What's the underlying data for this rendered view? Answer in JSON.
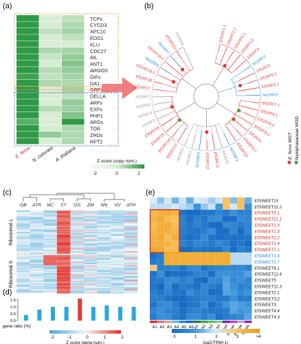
{
  "panel_labels": [
    "(a)",
    "(b)",
    "(c)",
    "(d)",
    "(e)"
  ],
  "panel_a": {
    "genes": [
      "TCPs",
      "CYCD3",
      "APC10",
      "EOD1",
      "KLU",
      "CDC27",
      "AIL",
      "ANT1",
      "ARGOS",
      "GIFs",
      "DA1",
      "GRFs",
      "DELLA",
      "ARFs",
      "EXPs",
      "PHP1",
      "ARGs",
      "TOR",
      "ZHDs",
      "RPT2"
    ],
    "species": [
      "E. ferox",
      "N. colorata",
      "A. thaliana"
    ],
    "values": [
      [
        2,
        0,
        0.3
      ],
      [
        2,
        0,
        0.5
      ],
      [
        2,
        0.3,
        0.6
      ],
      [
        2,
        0,
        0.3
      ],
      [
        2,
        0,
        0
      ],
      [
        2,
        0.5,
        0.6
      ],
      [
        2,
        0.2,
        0.8
      ],
      [
        2,
        0,
        1.0
      ],
      [
        2,
        0.4,
        0.8
      ],
      [
        1.8,
        0.3,
        0.6
      ],
      [
        2,
        0.5,
        0.5
      ],
      [
        2,
        0,
        0.6
      ],
      [
        2,
        0,
        0.3
      ],
      [
        2,
        0,
        0.8
      ],
      [
        2,
        0.4,
        0.7
      ],
      [
        2,
        0,
        1.0
      ],
      [
        1.5,
        0,
        2
      ],
      [
        2,
        0,
        0.5
      ],
      [
        2,
        0.8,
        0.5
      ],
      [
        2,
        0,
        0.5
      ]
    ],
    "highlight_gene": "GRFs",
    "scale_title": "Z score (copy num.)",
    "scale_ticks": [
      "-2",
      "0",
      "2"
    ]
  },
  "panel_b": {
    "labels": [
      {
        "t": "EfGRF1.1",
        "c": "red"
      },
      {
        "t": "EfGRF2.2",
        "c": "red"
      },
      {
        "t": "EfGRF3.1",
        "c": "red"
      },
      {
        "t": "EfGRF3.2",
        "c": "red"
      },
      {
        "t": "EfGRF4",
        "c": "red"
      },
      {
        "t": "NcGRF1",
        "c": "blue"
      },
      {
        "t": "EfGRF5",
        "c": "red"
      },
      {
        "t": "EfGRF6.2",
        "c": "red"
      },
      {
        "t": "EfGRF6.1",
        "c": "red"
      },
      {
        "t": "NcGRF2",
        "c": "blue"
      },
      {
        "t": "EfGRF7.1",
        "c": "red"
      },
      {
        "t": "EfGRF8.1",
        "c": "red"
      },
      {
        "t": "EfGRF8.2",
        "c": "red"
      },
      {
        "t": "EfGRF8.3",
        "c": "red"
      },
      {
        "t": "EfGRF9",
        "c": "red"
      },
      {
        "t": "EfGRF9.2",
        "c": "red"
      },
      {
        "t": "EfGRF10",
        "c": "red"
      },
      {
        "t": "NcGRF3",
        "c": "blue"
      },
      {
        "t": "AtGRF5",
        "c": "gray"
      },
      {
        "t": "EfGRF11",
        "c": "red"
      },
      {
        "t": "EfGRF12",
        "c": "red"
      },
      {
        "t": "NcGRF4",
        "c": "blue"
      },
      {
        "t": "AtGRF1",
        "c": "gray"
      },
      {
        "t": "AtGRF2",
        "c": "gray"
      },
      {
        "t": "EfGRF13",
        "c": "red"
      },
      {
        "t": "EfGRF14",
        "c": "red"
      },
      {
        "t": "EfGRF15",
        "c": "red"
      },
      {
        "t": "EfGRF16",
        "c": "red"
      },
      {
        "t": "AtGRF3",
        "c": "gray"
      },
      {
        "t": "AtGRF4",
        "c": "gray"
      },
      {
        "t": "AtGRF6",
        "c": "gray"
      },
      {
        "t": "AtGRF7",
        "c": "gray"
      },
      {
        "t": "EfGRF17",
        "c": "red"
      },
      {
        "t": "EfGRF18",
        "c": "red"
      },
      {
        "t": "EfGRF19.1",
        "c": "red"
      },
      {
        "t": "NcGRF6",
        "c": "blue"
      },
      {
        "t": "EfGRF19.2",
        "c": "red"
      },
      {
        "t": "NcGRF7",
        "c": "blue"
      },
      {
        "t": "EfGRF20",
        "c": "red"
      },
      {
        "t": "AtGRF8",
        "c": "gray"
      }
    ],
    "legend": [
      {
        "label": "E. ferox WGT",
        "color": "#e53935"
      },
      {
        "label": "Nymphaeaceae WGD",
        "color": "#43a047"
      }
    ]
  },
  "panel_c": {
    "species": [
      "GB",
      "ATR",
      "NC",
      "EF",
      "OS",
      "ZM",
      "NN",
      "VV",
      "ATH"
    ],
    "row_groups": [
      "Ribosomal L",
      "Ribosomal S"
    ]
  },
  "panel_d": {
    "ylabel": "gene ratio (%)",
    "yticks": [
      "0.0",
      "0.5",
      "1.0",
      "1.5"
    ],
    "values": [
      0.4,
      0.8,
      1.0,
      1.0,
      1.6,
      1.0,
      1.1,
      1.0,
      1.0
    ],
    "highlight_index": 4,
    "scale_title": "Z score (gene num.)",
    "scale_ticks": [
      "-2",
      "-1",
      "0",
      "1",
      "2"
    ]
  },
  "panel_e": {
    "rows": [
      {
        "t": "EfSWEET15",
        "c": "#222"
      },
      {
        "t": "EfSWEET11.2",
        "c": "#222"
      },
      {
        "t": "EfSWEET3.1",
        "c": "#c62828"
      },
      {
        "t": "EfSWEET11.1",
        "c": "#c62828"
      },
      {
        "t": "EfSWEET1.5",
        "c": "#c62828"
      },
      {
        "t": "EfSWEET1.3",
        "c": "#c62828"
      },
      {
        "t": "EfSWEET1.2",
        "c": "#c62828"
      },
      {
        "t": "EfSWEET1.4",
        "c": "#c62828"
      },
      {
        "t": "EfSWEET1.1",
        "c": "#c62828"
      },
      {
        "t": "EfSWEET1.6",
        "c": "#1e88e5"
      },
      {
        "t": "EfSWEET1.7",
        "c": "#1e88e5"
      },
      {
        "t": "EfSWEET6.1",
        "c": "#222"
      },
      {
        "t": "EfSWEET11.4",
        "c": "#222"
      },
      {
        "t": "EfSWEET5",
        "c": "#222"
      },
      {
        "t": "EfSWEET11.3",
        "c": "#222"
      },
      {
        "t": "EfSWEET2.1",
        "c": "#222"
      },
      {
        "t": "EfSWEET3.2",
        "c": "#222"
      },
      {
        "t": "EfSWEET3",
        "c": "#222"
      },
      {
        "t": "EfSWEET4.4",
        "c": "#222"
      },
      {
        "t": "EfSWEET4.3",
        "c": "#222"
      }
    ],
    "columns": [
      "A1",
      "A2",
      "A3",
      "A4",
      "A5",
      "A6",
      "EA1",
      "EA2",
      "EA3",
      "EA4",
      "Root",
      "Flower",
      "Petiole",
      "Seeds"
    ],
    "scale_title": "log2(TPM+1)",
    "scale_ticks": [
      "0",
      "1",
      "2",
      "3",
      ">4"
    ]
  },
  "colors": {
    "red": "#e53935",
    "blue": "#1e88e5",
    "gray": "#9e9e9e",
    "orange_box": "#f0a040",
    "blue_box": "#4a78c8",
    "arrow": "#f08080"
  }
}
